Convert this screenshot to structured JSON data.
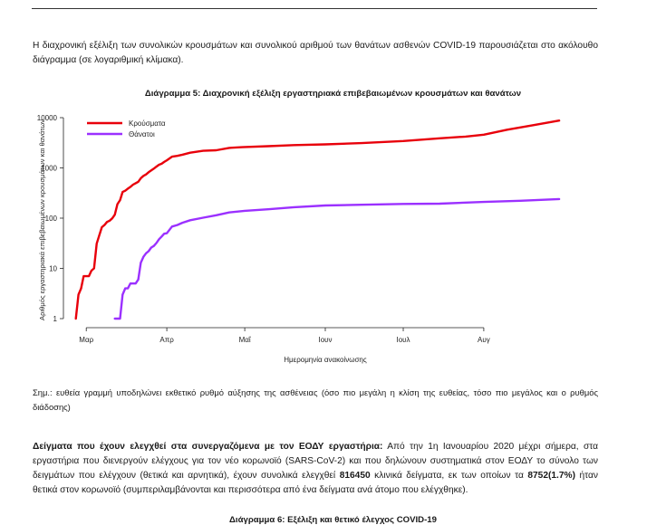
{
  "intro_text": "Η διαχρονική εξέλιξη των συνολικών κρουσμάτων και συνολικού αριθμού των θανάτων ασθενών COVID-19 παρουσιάζεται στο ακόλουθο διάγραμμα (σε λογαριθμική κλίμακα).",
  "figure_title": "Διάγραμμα 5: Διαχρονική εξέλιξη εργαστηριακά επιβεβαιωμένων κρουσμάτων και θανάτων",
  "chart_note": "Σημ.: ευθεία γραμμή υποδηλώνει εκθετικό ρυθμό αύξησης της ασθένειας (όσο πιο μεγάλη η κλίση της ευθείας, τόσο πιο μεγάλος και ο ρυθμός διάδοσης)",
  "samples": {
    "heading": "Δείγματα που έχουν ελεγχθεί στα συνεργαζόμενα με τον ΕΟΔΥ εργαστήρια:",
    "text_1": " Από την 1η Ιανουαρίου 2020 μέχρι σήμερα, στα εργαστήρια που διενεργούν ελέγχους για τον νέο κορωνοϊό (SARS-CoV-2) και που δηλώνουν συστηματικά στον ΕΟΔΥ το σύνολο των δειγμάτων που ελέγχουν (θετικά και αρνητικά), έχουν συνολικά ελεγχθεί ",
    "total_samples": "816450",
    "text_2": " κλινικά δείγματα, εκ των οποίων τα ",
    "positive_samples": "8752(1.7%)",
    "text_3": " ήταν θετικά στον κορωνοϊό (συμπεριλαμβάνονται και περισσότερα από ένα δείγματα ανά άτομο που ελέγχθηκε)."
  },
  "next_caption_fragment": "Διάγραμμα 6: Εξέλιξη και θετικό έλεγχος COVID-19",
  "chart_data": {
    "type": "line",
    "title": "Διάγραμμα 5: Διαχρονική εξέλιξη εργαστηριακά επιβεβαιωμένων κρουσμάτων και θανάτων",
    "xlabel": "Ημερομηνία ανακοίνωσης",
    "ylabel": "Αριθμός εργαστηριακά επιβεβαιωμένων κρουσμάτων και θανάτων",
    "yscale": "log",
    "ylim": [
      1,
      10000
    ],
    "y_ticks": [
      1,
      10,
      100,
      1000,
      10000
    ],
    "x_ticks": [
      "2020-03-01",
      "2020-04-01",
      "2020-05-01",
      "2020-06-01",
      "2020-07-01",
      "2020-08-01"
    ],
    "x_tick_labels": [
      "Μαρ",
      "Απρ",
      "Μαΐ",
      "Ιουν",
      "Ιουλ",
      "Αυγ"
    ],
    "xlim": [
      "2020-02-24",
      "2020-09-07"
    ],
    "legend_position": "top-left",
    "grid": false,
    "series": [
      {
        "name": "Κρούσματα",
        "color": "#e8000b",
        "points": [
          [
            "2020-02-26",
            1
          ],
          [
            "2020-02-27",
            3
          ],
          [
            "2020-02-28",
            4
          ],
          [
            "2020-02-29",
            7
          ],
          [
            "2020-03-01",
            7
          ],
          [
            "2020-03-02",
            7
          ],
          [
            "2020-03-03",
            9
          ],
          [
            "2020-03-04",
            10
          ],
          [
            "2020-03-05",
            31
          ],
          [
            "2020-03-06",
            45
          ],
          [
            "2020-03-07",
            66
          ],
          [
            "2020-03-08",
            73
          ],
          [
            "2020-03-09",
            84
          ],
          [
            "2020-03-10",
            89
          ],
          [
            "2020-03-11",
            99
          ],
          [
            "2020-03-12",
            117
          ],
          [
            "2020-03-13",
            190
          ],
          [
            "2020-03-14",
            228
          ],
          [
            "2020-03-15",
            331
          ],
          [
            "2020-03-16",
            352
          ],
          [
            "2020-03-17",
            387
          ],
          [
            "2020-03-18",
            418
          ],
          [
            "2020-03-19",
            464
          ],
          [
            "2020-03-20",
            495
          ],
          [
            "2020-03-21",
            530
          ],
          [
            "2020-03-22",
            624
          ],
          [
            "2020-03-23",
            695
          ],
          [
            "2020-03-24",
            743
          ],
          [
            "2020-03-25",
            821
          ],
          [
            "2020-03-26",
            892
          ],
          [
            "2020-03-27",
            966
          ],
          [
            "2020-03-28",
            1061
          ],
          [
            "2020-03-29",
            1156
          ],
          [
            "2020-03-30",
            1212
          ],
          [
            "2020-03-31",
            1314
          ],
          [
            "2020-04-01",
            1415
          ],
          [
            "2020-04-03",
            1673
          ],
          [
            "2020-04-05",
            1735
          ],
          [
            "2020-04-07",
            1832
          ],
          [
            "2020-04-10",
            2011
          ],
          [
            "2020-04-15",
            2192
          ],
          [
            "2020-04-20",
            2245
          ],
          [
            "2020-04-25",
            2506
          ],
          [
            "2020-04-30",
            2591
          ],
          [
            "2020-05-10",
            2710
          ],
          [
            "2020-05-20",
            2850
          ],
          [
            "2020-06-01",
            2937
          ],
          [
            "2020-06-15",
            3121
          ],
          [
            "2020-07-01",
            3432
          ],
          [
            "2020-07-15",
            3883
          ],
          [
            "2020-07-25",
            4193
          ],
          [
            "2020-08-01",
            4587
          ],
          [
            "2020-08-10",
            5749
          ],
          [
            "2020-08-20",
            7075
          ],
          [
            "2020-08-30",
            8752
          ]
        ]
      },
      {
        "name": "Θάνατοι",
        "color": "#9b30ff",
        "points": [
          [
            "2020-03-12",
            1
          ],
          [
            "2020-03-13",
            1
          ],
          [
            "2020-03-14",
            1
          ],
          [
            "2020-03-15",
            3
          ],
          [
            "2020-03-16",
            4
          ],
          [
            "2020-03-17",
            4
          ],
          [
            "2020-03-18",
            5
          ],
          [
            "2020-03-19",
            5
          ],
          [
            "2020-03-20",
            5
          ],
          [
            "2020-03-21",
            6
          ],
          [
            "2020-03-22",
            13
          ],
          [
            "2020-03-23",
            17
          ],
          [
            "2020-03-24",
            20
          ],
          [
            "2020-03-25",
            22
          ],
          [
            "2020-03-26",
            26
          ],
          [
            "2020-03-27",
            28
          ],
          [
            "2020-03-28",
            32
          ],
          [
            "2020-03-29",
            38
          ],
          [
            "2020-03-30",
            43
          ],
          [
            "2020-03-31",
            49
          ],
          [
            "2020-04-01",
            50
          ],
          [
            "2020-04-03",
            68
          ],
          [
            "2020-04-05",
            73
          ],
          [
            "2020-04-07",
            81
          ],
          [
            "2020-04-10",
            91
          ],
          [
            "2020-04-15",
            102
          ],
          [
            "2020-04-20",
            114
          ],
          [
            "2020-04-25",
            130
          ],
          [
            "2020-05-01",
            140
          ],
          [
            "2020-05-10",
            150
          ],
          [
            "2020-05-20",
            165
          ],
          [
            "2020-06-01",
            179
          ],
          [
            "2020-06-15",
            185
          ],
          [
            "2020-07-01",
            192
          ],
          [
            "2020-07-15",
            194
          ],
          [
            "2020-08-01",
            210
          ],
          [
            "2020-08-15",
            222
          ],
          [
            "2020-08-30",
            240
          ]
        ]
      }
    ]
  }
}
